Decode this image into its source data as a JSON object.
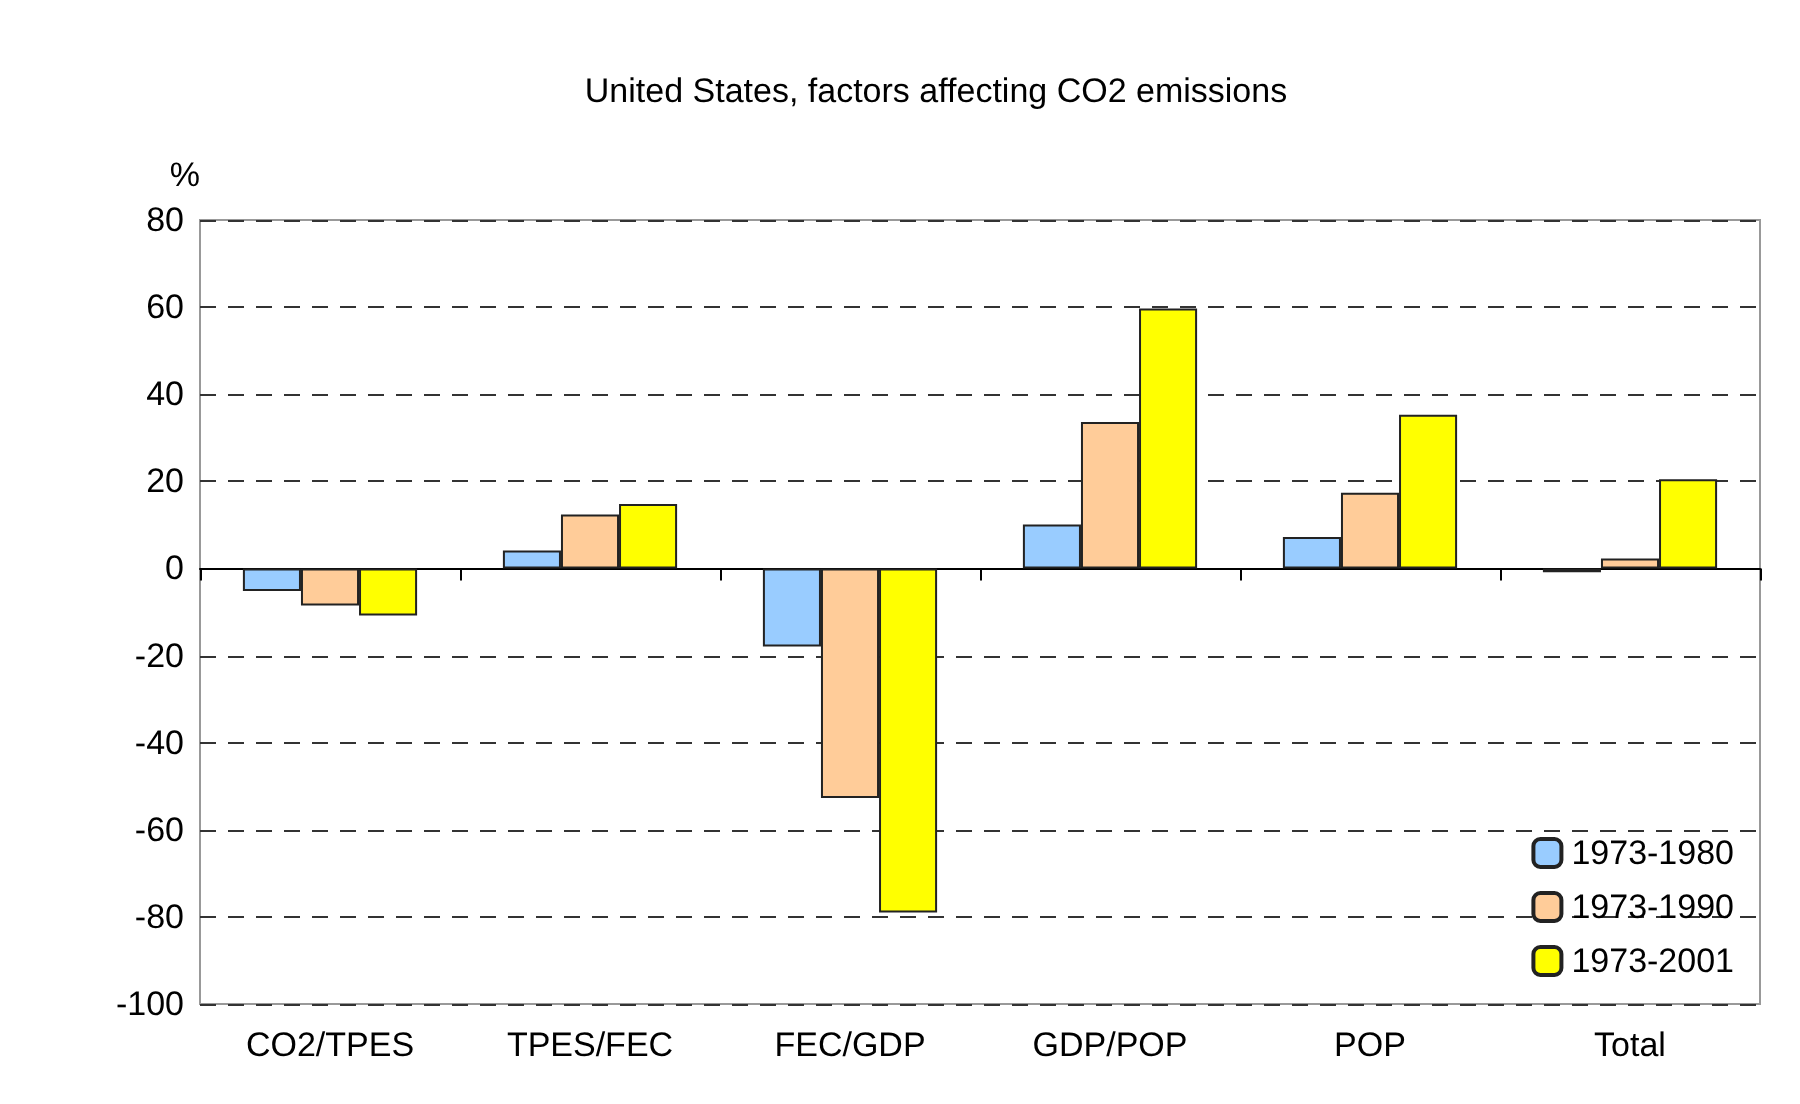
{
  "chart_data": {
    "type": "bar",
    "title": "United States, factors affecting CO2 emissions",
    "ylabel": "%",
    "categories": [
      "CO2/TPES",
      "TPES/FEC",
      "FEC/GDP",
      "GDP/POP",
      "POP",
      "Total"
    ],
    "series": [
      {
        "name": "1973-1980",
        "color": "#99ccff",
        "values": [
          -5.2,
          4.1,
          -17.9,
          10.1,
          7.2,
          -0.9
        ]
      },
      {
        "name": "1973-1990",
        "color": "#ffcc99",
        "values": [
          -8.5,
          12.4,
          -52.7,
          33.6,
          17.4,
          2.3
        ]
      },
      {
        "name": "1973-2001",
        "color": "#ffff00",
        "values": [
          -10.8,
          14.8,
          -79,
          59.7,
          35.3,
          20.5
        ]
      }
    ],
    "ylim": [
      -100,
      80
    ],
    "yticks": [
      -100,
      -80,
      -60,
      -40,
      -20,
      0,
      20,
      40,
      60,
      80
    ],
    "grid": "y",
    "legend": "bottom right"
  }
}
